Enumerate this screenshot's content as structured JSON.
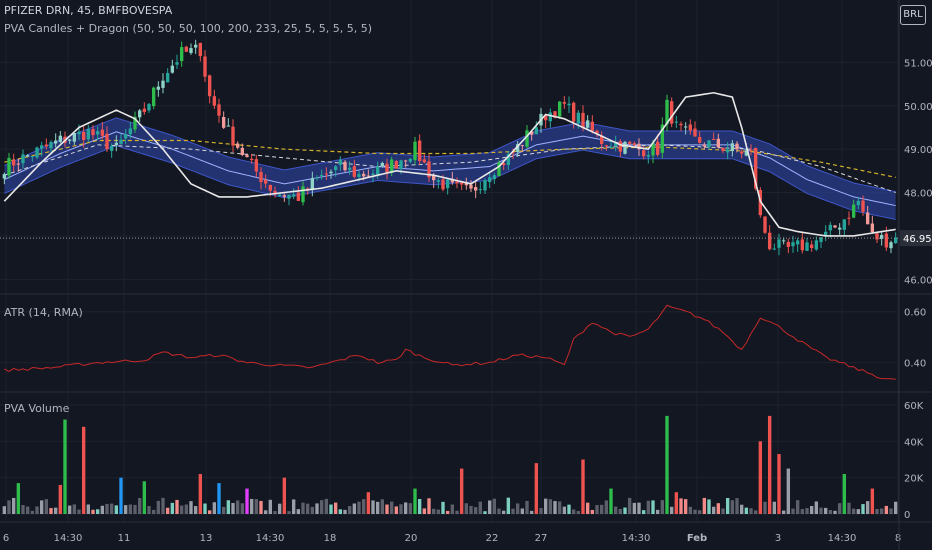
{
  "header": {
    "symbol_line": "PFIZER DRN, 45, BMFBOVESPA",
    "indicator_line": "PVA Candles + Dragon (50, 50, 50, 100, 200, 233, 25, 5, 5, 5, 5, 5)",
    "currency": "BRL"
  },
  "panes": {
    "atr_title": "ATR (14, RMA)",
    "volume_title": "PVA Volume"
  },
  "colors": {
    "background": "#131722",
    "grid": "#1e222d",
    "up": "#26a69a",
    "up_vector": "#2ebd4c",
    "down": "#ef5350",
    "neutral": "#9a9ea6",
    "blue_vector": "#2196f3",
    "magenta_vector": "#e040fb",
    "dragon_band": "#2a3c8c",
    "white_ma": "#e8e8e8",
    "yellow_ma": "#d4b12a",
    "atr_line": "#c62828"
  },
  "chart_data": [
    {
      "type": "candlestick",
      "name": "price",
      "y_ticks": [
        "46.00",
        "47.00",
        "48.00",
        "49.00",
        "50.00",
        "51.00"
      ],
      "ylim": [
        45.8,
        52.3
      ],
      "last_price": "46.95",
      "x_ticks": [
        "6",
        "14:30",
        "11",
        "13",
        "14:30",
        "18",
        "20",
        "22",
        "27",
        "14:30",
        "Feb",
        "3",
        "14:30",
        "8"
      ],
      "keypoints_close": [
        [
          0,
          48.6
        ],
        [
          6,
          48.9
        ],
        [
          12,
          49.2
        ],
        [
          18,
          49.4
        ],
        [
          24,
          49.0
        ],
        [
          30,
          49.9
        ],
        [
          34,
          50.7
        ],
        [
          38,
          51.2
        ],
        [
          42,
          51.3
        ],
        [
          44,
          50.2
        ],
        [
          48,
          49.4
        ],
        [
          53,
          48.6
        ],
        [
          58,
          48.0
        ],
        [
          63,
          47.9
        ],
        [
          67,
          48.3
        ],
        [
          72,
          48.6
        ],
        [
          76,
          48.4
        ],
        [
          80,
          48.5
        ],
        [
          84,
          48.7
        ],
        [
          88,
          49.0
        ],
        [
          92,
          48.3
        ],
        [
          96,
          48.1
        ],
        [
          100,
          48.0
        ],
        [
          104,
          48.5
        ],
        [
          108,
          48.8
        ],
        [
          112,
          49.3
        ],
        [
          116,
          49.8
        ],
        [
          120,
          50.0
        ],
        [
          124,
          49.6
        ],
        [
          128,
          49.2
        ],
        [
          132,
          49.1
        ],
        [
          136,
          49.0
        ],
        [
          140,
          49.0
        ],
        [
          142,
          50.0
        ],
        [
          144,
          49.5
        ],
        [
          148,
          49.2
        ],
        [
          152,
          49.1
        ],
        [
          156,
          49.0
        ],
        [
          160,
          48.9
        ],
        [
          162,
          47.4
        ],
        [
          164,
          46.8
        ],
        [
          168,
          46.7
        ],
        [
          172,
          46.8
        ],
        [
          176,
          47.0
        ],
        [
          180,
          47.4
        ],
        [
          183,
          47.8
        ],
        [
          186,
          47.0
        ],
        [
          189,
          46.9
        ],
        [
          191,
          46.95
        ]
      ],
      "white_ma_keypoints": [
        [
          0,
          47.8
        ],
        [
          8,
          48.7
        ],
        [
          16,
          49.5
        ],
        [
          24,
          49.9
        ],
        [
          28,
          49.7
        ],
        [
          34,
          49.0
        ],
        [
          40,
          48.2
        ],
        [
          46,
          47.9
        ],
        [
          52,
          47.9
        ],
        [
          60,
          48.0
        ],
        [
          68,
          48.1
        ],
        [
          76,
          48.3
        ],
        [
          84,
          48.5
        ],
        [
          92,
          48.4
        ],
        [
          100,
          48.2
        ],
        [
          106,
          48.6
        ],
        [
          112,
          49.3
        ],
        [
          116,
          49.8
        ],
        [
          120,
          49.7
        ],
        [
          126,
          49.4
        ],
        [
          132,
          49.1
        ],
        [
          138,
          49.0
        ],
        [
          142,
          49.6
        ],
        [
          146,
          50.2
        ],
        [
          152,
          50.3
        ],
        [
          156,
          50.2
        ],
        [
          158,
          49.5
        ],
        [
          162,
          47.8
        ],
        [
          166,
          47.2
        ],
        [
          170,
          47.1
        ],
        [
          176,
          47.0
        ],
        [
          182,
          47.0
        ],
        [
          188,
          47.1
        ],
        [
          191,
          47.15
        ]
      ],
      "dragon_mid_keypoints": [
        [
          0,
          48.3
        ],
        [
          12,
          48.9
        ],
        [
          24,
          49.4
        ],
        [
          36,
          49.0
        ],
        [
          48,
          48.5
        ],
        [
          60,
          48.2
        ],
        [
          70,
          48.4
        ],
        [
          80,
          48.6
        ],
        [
          92,
          48.5
        ],
        [
          104,
          48.6
        ],
        [
          114,
          49.1
        ],
        [
          124,
          49.3
        ],
        [
          134,
          49.1
        ],
        [
          146,
          49.1
        ],
        [
          156,
          49.1
        ],
        [
          164,
          48.8
        ],
        [
          172,
          48.3
        ],
        [
          182,
          47.9
        ],
        [
          191,
          47.7
        ]
      ],
      "dragon_halfwidth": 0.32,
      "dashed_white_keypoints": [
        [
          0,
          48.4
        ],
        [
          20,
          49.1
        ],
        [
          40,
          49.0
        ],
        [
          60,
          48.8
        ],
        [
          80,
          48.6
        ],
        [
          100,
          48.7
        ],
        [
          120,
          49.0
        ],
        [
          140,
          49.1
        ],
        [
          160,
          49.0
        ],
        [
          175,
          48.6
        ],
        [
          191,
          48.0
        ]
      ],
      "yellow_keypoints": [
        [
          0,
          48.7
        ],
        [
          20,
          49.2
        ],
        [
          40,
          49.2
        ],
        [
          60,
          49.0
        ],
        [
          80,
          48.9
        ],
        [
          100,
          48.9
        ],
        [
          120,
          49.0
        ],
        [
          140,
          49.05
        ],
        [
          160,
          48.95
        ],
        [
          175,
          48.7
        ],
        [
          191,
          48.35
        ]
      ]
    },
    {
      "type": "line",
      "name": "atr",
      "y_ticks": [
        "0.40",
        "0.60"
      ],
      "ylim": [
        0.3,
        0.65
      ],
      "keypoints": [
        [
          0,
          0.37
        ],
        [
          10,
          0.38
        ],
        [
          20,
          0.4
        ],
        [
          30,
          0.41
        ],
        [
          34,
          0.44
        ],
        [
          40,
          0.42
        ],
        [
          46,
          0.43
        ],
        [
          52,
          0.4
        ],
        [
          58,
          0.39
        ],
        [
          66,
          0.38
        ],
        [
          72,
          0.41
        ],
        [
          76,
          0.43
        ],
        [
          80,
          0.4
        ],
        [
          84,
          0.41
        ],
        [
          86,
          0.45
        ],
        [
          90,
          0.42
        ],
        [
          96,
          0.39
        ],
        [
          104,
          0.4
        ],
        [
          110,
          0.43
        ],
        [
          116,
          0.42
        ],
        [
          120,
          0.39
        ],
        [
          122,
          0.49
        ],
        [
          126,
          0.56
        ],
        [
          130,
          0.52
        ],
        [
          134,
          0.5
        ],
        [
          138,
          0.53
        ],
        [
          142,
          0.62
        ],
        [
          146,
          0.6
        ],
        [
          150,
          0.57
        ],
        [
          154,
          0.52
        ],
        [
          158,
          0.45
        ],
        [
          162,
          0.58
        ],
        [
          166,
          0.54
        ],
        [
          170,
          0.49
        ],
        [
          176,
          0.42
        ],
        [
          182,
          0.38
        ],
        [
          188,
          0.34
        ],
        [
          191,
          0.33
        ]
      ]
    },
    {
      "type": "bar",
      "name": "volume",
      "y_ticks": [
        "0",
        "20K",
        "40K",
        "60K"
      ],
      "ylim": [
        0,
        60000
      ],
      "spikes": [
        [
          3,
          17000,
          "up_vector"
        ],
        [
          13,
          52000,
          "up_vector"
        ],
        [
          17,
          48000,
          "down"
        ],
        [
          12,
          16000,
          "down"
        ],
        [
          25,
          20000,
          "blue_vector"
        ],
        [
          30,
          18000,
          "up_vector"
        ],
        [
          42,
          22000,
          "down"
        ],
        [
          46,
          17000,
          "blue_vector"
        ],
        [
          52,
          14000,
          "magenta_vector"
        ],
        [
          60,
          20000,
          "down"
        ],
        [
          78,
          12000,
          "down"
        ],
        [
          88,
          14000,
          "up_vector"
        ],
        [
          98,
          25000,
          "down"
        ],
        [
          114,
          28000,
          "down"
        ],
        [
          124,
          30000,
          "down"
        ],
        [
          130,
          14000,
          "up_vector"
        ],
        [
          142,
          54000,
          "up_vector"
        ],
        [
          144,
          12000,
          "down"
        ],
        [
          162,
          40000,
          "down"
        ],
        [
          164,
          54000,
          "down"
        ],
        [
          166,
          33000,
          "down"
        ],
        [
          168,
          25000,
          "neutral"
        ],
        [
          180,
          22000,
          "up_vector"
        ],
        [
          186,
          14000,
          "down"
        ]
      ]
    }
  ]
}
